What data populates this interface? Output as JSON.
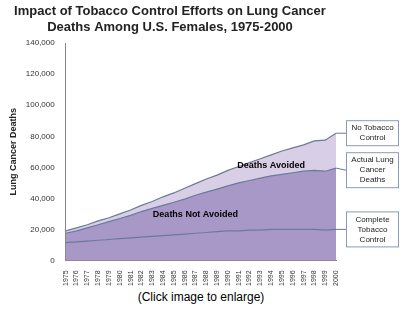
{
  "chart_data": {
    "type": "area",
    "title": [
      "Impact of Tobacco Control Efforts on Lung Cancer",
      "Deaths Among U.S. Females, 1975-2000"
    ],
    "y_label": "Lung Cancer Deaths",
    "categories": [
      "1975",
      "1976",
      "1977",
      "1978",
      "1979",
      "1980",
      "1981",
      "1982",
      "1983",
      "1984",
      "1985",
      "1986",
      "1987",
      "1988",
      "1989",
      "1990",
      "1991",
      "1992",
      "1993",
      "1994",
      "1995",
      "1996",
      "1997",
      "1998",
      "1999",
      "2000"
    ],
    "series": [
      {
        "name": "Complete Tobacco Control",
        "color": "#a898c8",
        "values": [
          11500,
          12000,
          12500,
          13000,
          13500,
          14000,
          14500,
          15000,
          15500,
          16000,
          16500,
          17000,
          17500,
          18000,
          18500,
          19000,
          19000,
          19500,
          19500,
          20000,
          20000,
          20000,
          20000,
          20000,
          19500,
          20000
        ]
      },
      {
        "name": "Actual Lung Cancer Deaths",
        "color": "#a898c8",
        "values": [
          17500,
          19000,
          21000,
          23000,
          25000,
          27000,
          29000,
          31500,
          33500,
          35500,
          37500,
          39500,
          42000,
          44000,
          46000,
          48000,
          50000,
          51500,
          53000,
          54500,
          55500,
          56500,
          57500,
          58000,
          57500,
          59500
        ]
      },
      {
        "name": "No Tobacco Control",
        "color": "#d8cfe6",
        "values": [
          19000,
          21000,
          23000,
          25500,
          27500,
          30000,
          32500,
          35500,
          38000,
          41000,
          43500,
          46500,
          49500,
          52500,
          55000,
          58000,
          60500,
          63000,
          65500,
          68000,
          70500,
          72500,
          74500,
          77000,
          77500,
          82000
        ]
      }
    ],
    "annotations": [
      "Deaths Avoided",
      "Deaths Not Avoided"
    ],
    "caption": "(Click image to enlarge)",
    "ylim": [
      0,
      140000
    ],
    "yticks": [
      0,
      {
        "value": 20000,
        "label": "20,000"
      },
      {
        "value": 40000,
        "label": "40,000"
      },
      {
        "value": 60000,
        "label": "60,000"
      },
      {
        "value": 80000,
        "label": "80,000"
      },
      {
        "value": 100000,
        "label": "100,000"
      },
      {
        "value": 120000,
        "label": "120,000"
      },
      {
        "value": 140000,
        "label": "140,000"
      }
    ],
    "grid": false
  }
}
